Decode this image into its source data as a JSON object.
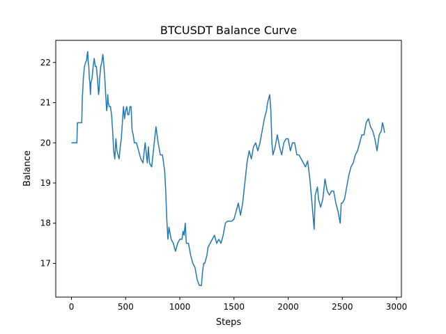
{
  "chart_data": {
    "type": "line",
    "title": "BTCUSDT Balance Curve",
    "xlabel": "Steps",
    "ylabel": "Balance",
    "xlim": [
      -145,
      3045
    ],
    "ylim": [
      16.16,
      22.55
    ],
    "xticks": [
      0,
      500,
      1000,
      1500,
      2000,
      2500,
      3000
    ],
    "yticks": [
      17,
      18,
      19,
      20,
      21,
      22
    ],
    "grid": false,
    "legend": "none",
    "series_color": "#1f77b4",
    "series": [
      {
        "x": [
          0,
          50,
          55,
          95,
          100,
          110,
          120,
          130,
          140,
          145,
          150,
          155,
          160,
          165,
          170,
          175,
          180,
          190,
          200,
          210,
          220,
          225,
          230,
          240,
          250,
          255,
          260,
          270,
          280,
          290,
          300,
          310,
          320,
          325,
          330,
          335,
          340,
          350,
          360,
          370,
          380,
          390,
          400,
          410,
          420,
          430,
          440,
          450,
          460,
          470,
          480,
          490,
          500,
          510,
          520,
          530,
          540,
          550,
          560,
          570,
          580,
          590,
          600,
          620,
          640,
          660,
          680,
          700,
          710,
          720,
          740,
          760,
          780,
          800,
          820,
          840,
          860,
          870,
          880,
          890,
          900,
          920,
          940,
          960,
          980,
          1000,
          1010,
          1020,
          1030,
          1040,
          1050,
          1060,
          1080,
          1100,
          1110,
          1120,
          1140,
          1160,
          1180,
          1200,
          1210,
          1220,
          1230,
          1240,
          1250,
          1260,
          1280,
          1300,
          1320,
          1340,
          1360,
          1380,
          1400,
          1420,
          1440,
          1460,
          1480,
          1500,
          1520,
          1540,
          1560,
          1580,
          1600,
          1620,
          1640,
          1660,
          1680,
          1700,
          1720,
          1740,
          1760,
          1780,
          1800,
          1810,
          1820,
          1830,
          1840,
          1850,
          1860,
          1880,
          1900,
          1920,
          1940,
          1960,
          1980,
          2000,
          2020,
          2040,
          2060,
          2080,
          2100,
          2120,
          2140,
          2160,
          2180,
          2200,
          2220,
          2240,
          2250,
          2260,
          2270,
          2280,
          2290,
          2300,
          2320,
          2340,
          2360,
          2380,
          2400,
          2420,
          2440,
          2460,
          2480,
          2490,
          2500,
          2520,
          2540,
          2560,
          2580,
          2600,
          2620,
          2640,
          2660,
          2680,
          2700,
          2720,
          2740,
          2760,
          2780,
          2800,
          2820,
          2840,
          2860,
          2870,
          2880,
          2890
        ],
        "y": [
          20.0,
          20.0,
          20.5,
          20.5,
          21.1,
          21.6,
          21.9,
          22.0,
          22.05,
          22.2,
          22.27,
          22.0,
          21.9,
          21.6,
          21.5,
          21.2,
          21.5,
          21.6,
          21.9,
          22.1,
          21.9,
          21.9,
          21.9,
          21.6,
          21.2,
          21.3,
          21.6,
          21.9,
          22.0,
          22.2,
          21.9,
          21.5,
          21.0,
          20.8,
          20.9,
          21.2,
          21.0,
          20.9,
          20.9,
          20.7,
          20.3,
          19.8,
          19.6,
          20.1,
          19.8,
          19.7,
          19.6,
          19.9,
          20.1,
          20.5,
          20.9,
          20.6,
          20.8,
          20.9,
          20.7,
          20.7,
          20.9,
          20.9,
          20.3,
          20.2,
          20.0,
          20.0,
          20.0,
          19.8,
          19.6,
          19.5,
          20.0,
          19.5,
          19.9,
          19.5,
          19.4,
          19.9,
          20.4,
          20.0,
          19.7,
          19.7,
          19.3,
          18.8,
          18.1,
          17.6,
          17.9,
          17.6,
          17.5,
          17.3,
          17.5,
          17.6,
          17.6,
          17.6,
          17.8,
          17.7,
          18.0,
          17.5,
          17.5,
          17.2,
          17.1,
          17.0,
          16.9,
          16.6,
          16.45,
          16.45,
          16.8,
          17.0,
          17.0,
          17.1,
          17.2,
          17.4,
          17.5,
          17.6,
          17.7,
          17.5,
          17.6,
          17.5,
          17.7,
          18.0,
          18.05,
          18.05,
          18.05,
          18.1,
          18.3,
          18.5,
          18.2,
          18.5,
          19.0,
          19.5,
          19.8,
          19.6,
          19.9,
          20.0,
          19.8,
          20.0,
          20.3,
          20.6,
          20.8,
          21.0,
          21.1,
          21.2,
          20.8,
          20.0,
          19.7,
          19.9,
          20.2,
          19.9,
          19.7,
          20.0,
          20.1,
          20.1,
          19.8,
          20.0,
          20.0,
          19.7,
          19.7,
          19.6,
          19.5,
          19.4,
          19.55,
          19.1,
          18.5,
          17.85,
          18.7,
          18.8,
          18.9,
          18.6,
          18.5,
          18.4,
          18.6,
          19.1,
          18.8,
          18.7,
          18.8,
          18.8,
          18.5,
          18.3,
          18.0,
          18.5,
          18.5,
          18.6,
          18.9,
          19.2,
          19.4,
          19.5,
          19.7,
          19.8,
          20.0,
          20.2,
          20.2,
          20.5,
          20.6,
          20.4,
          20.3,
          20.1,
          19.8,
          20.2,
          20.3,
          20.5,
          20.4,
          20.25
        ]
      }
    ]
  }
}
